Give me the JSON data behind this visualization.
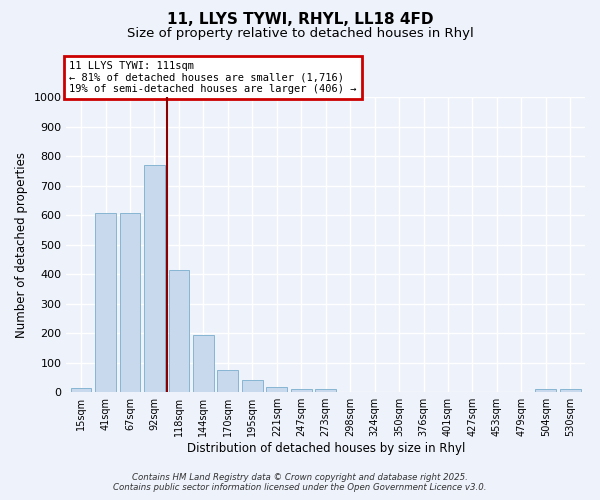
{
  "title": "11, LLYS TYWI, RHYL, LL18 4FD",
  "subtitle": "Size of property relative to detached houses in Rhyl",
  "xlabel": "Distribution of detached houses by size in Rhyl",
  "ylabel": "Number of detached properties",
  "categories": [
    "15sqm",
    "41sqm",
    "67sqm",
    "92sqm",
    "118sqm",
    "144sqm",
    "170sqm",
    "195sqm",
    "221sqm",
    "247sqm",
    "273sqm",
    "298sqm",
    "324sqm",
    "350sqm",
    "376sqm",
    "401sqm",
    "427sqm",
    "453sqm",
    "479sqm",
    "504sqm",
    "530sqm"
  ],
  "values": [
    15,
    607,
    607,
    770,
    413,
    193,
    75,
    40,
    18,
    10,
    10,
    0,
    0,
    0,
    0,
    0,
    0,
    0,
    0,
    10,
    10
  ],
  "bar_color": "#c8d8ed",
  "bar_edge_color": "#7aaecc",
  "vline_x_pos": 3.5,
  "vline_color": "#8b0000",
  "annotation_title": "11 LLYS TYWI: 111sqm",
  "annotation_line1": "← 81% of detached houses are smaller (1,716)",
  "annotation_line2": "19% of semi-detached houses are larger (406) →",
  "annotation_box_color": "#ffffff",
  "annotation_box_edge_color": "#cc0000",
  "ylim": [
    0,
    1000
  ],
  "yticks": [
    0,
    100,
    200,
    300,
    400,
    500,
    600,
    700,
    800,
    900,
    1000
  ],
  "bg_color": "#eef2fb",
  "grid_color": "#ffffff",
  "footer_line1": "Contains HM Land Registry data © Crown copyright and database right 2025.",
  "footer_line2": "Contains public sector information licensed under the Open Government Licence v3.0.",
  "title_fontsize": 11,
  "subtitle_fontsize": 9.5
}
